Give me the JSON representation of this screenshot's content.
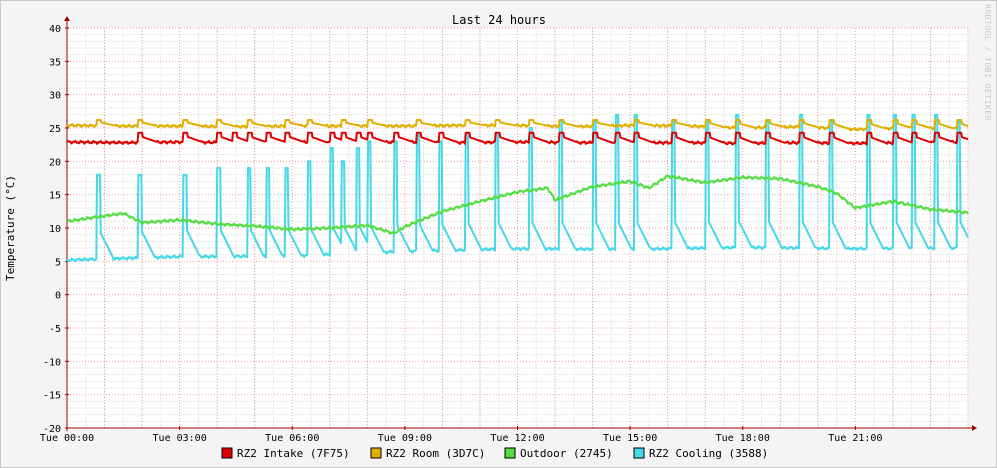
{
  "watermark": "RRDTOOL / TOBI OETIKER",
  "colors": {
    "background": "#f4f4f4",
    "plot_background": "#ffffff",
    "minor_grid": "#e0e0e0",
    "major_grid": "#f0a0a0",
    "axis": "#a00000"
  },
  "chart_data": {
    "type": "line",
    "title": "Last 24 hours",
    "xlabel": "",
    "ylabel": "Temperature (°C)",
    "ylim": [
      -20,
      40
    ],
    "yticks": [
      40,
      35,
      30,
      25,
      20,
      15,
      10,
      5,
      0,
      -5,
      -10,
      -15,
      -20
    ],
    "xlim": [
      0,
      24
    ],
    "xticks": [
      {
        "x": 0,
        "label": "Tue 00:00"
      },
      {
        "x": 3,
        "label": "Tue 03:00"
      },
      {
        "x": 6,
        "label": "Tue 06:00"
      },
      {
        "x": 9,
        "label": "Tue 09:00"
      },
      {
        "x": 12,
        "label": "Tue 12:00"
      },
      {
        "x": 15,
        "label": "Tue 15:00"
      },
      {
        "x": 18,
        "label": "Tue 18:00"
      },
      {
        "x": 21,
        "label": "Tue 21:00"
      }
    ],
    "grid": true,
    "legend_position": "bottom",
    "series": [
      {
        "name": "RZ2 Intake (7F75)",
        "color": "#e00000",
        "x": [
          0,
          1.5,
          3,
          4.5,
          6,
          7.5,
          9,
          10.5,
          12,
          13.5,
          15,
          16.5,
          18,
          19.5,
          21,
          22.5,
          24
        ],
        "y": [
          22.9,
          22.8,
          22.9,
          22.8,
          22.9,
          22.8,
          22.9,
          22.8,
          22.9,
          22.8,
          22.8,
          22.8,
          22.7,
          22.8,
          22.7,
          22.8,
          22.9
        ],
        "spikes": [
          1.9,
          3.1,
          4.0,
          4.4,
          4.8,
          5.3,
          5.8,
          6.4,
          7.0,
          7.3,
          7.7,
          8.0,
          8.7,
          9.3,
          9.9,
          10.6,
          11.4,
          12.3,
          13.1,
          14.0,
          14.6,
          15.1,
          16.1,
          17.0,
          17.8,
          18.6,
          19.5,
          20.3,
          21.3,
          22.0,
          22.5,
          23.1,
          23.7
        ],
        "spike_peak": 24.3
      },
      {
        "name": "RZ2 Room (3D7C)",
        "color": "#e0b000",
        "x": [
          0,
          1.5,
          3,
          4.5,
          6,
          7.5,
          9,
          10.5,
          12,
          13.5,
          15,
          16.5,
          18,
          19.5,
          21,
          22.5,
          24
        ],
        "y": [
          25.4,
          25.3,
          25.3,
          25.2,
          25.3,
          25.3,
          25.3,
          25.4,
          25.4,
          25.2,
          25.4,
          25.3,
          25.0,
          25.2,
          24.8,
          25.0,
          24.9
        ],
        "spikes": [
          0.8,
          1.9,
          3.1,
          4.0,
          4.8,
          5.8,
          6.4,
          7.3,
          8.0,
          9.3,
          10.6,
          11.4,
          12.3,
          13.1,
          14.0,
          15.1,
          16.1,
          17.0,
          17.8,
          18.6,
          19.5,
          20.3,
          21.3,
          22.0,
          22.5,
          23.1,
          23.7
        ],
        "spike_peak": 26.2
      },
      {
        "name": "Outdoor (2745)",
        "color": "#55dd44",
        "x": [
          0,
          1,
          1.5,
          2,
          3,
          4,
          5,
          6,
          7,
          8,
          8.7,
          9,
          10,
          11,
          12,
          12.8,
          13,
          14,
          15,
          15.5,
          16,
          17,
          18,
          19,
          20,
          20.5,
          21,
          22,
          23,
          24
        ],
        "y": [
          11.0,
          11.8,
          12.2,
          10.8,
          11.2,
          10.6,
          10.3,
          9.8,
          10.0,
          10.4,
          9.2,
          10.2,
          12.5,
          14.0,
          15.4,
          16.0,
          14.2,
          16.2,
          17.0,
          16.0,
          17.8,
          16.8,
          17.6,
          17.4,
          16.2,
          15.2,
          13.0,
          14.0,
          12.8,
          12.3
        ]
      },
      {
        "name": "RZ2 Cooling (3588)",
        "color": "#44d8e8",
        "x": [
          0,
          3,
          6,
          9,
          12,
          15,
          18,
          21,
          24
        ],
        "y": [
          5.2,
          5.7,
          5.8,
          6.5,
          6.9,
          6.8,
          7.1,
          6.9,
          7.0
        ],
        "spikes": [
          0.8,
          1.9,
          3.1,
          4.0,
          4.8,
          5.3,
          5.8,
          6.4,
          7.0,
          7.3,
          7.7,
          8.0,
          8.7,
          9.3,
          9.9,
          10.6,
          11.4,
          12.3,
          13.1,
          14.0,
          14.6,
          15.1,
          16.1,
          17.0,
          17.8,
          18.6,
          19.5,
          20.3,
          21.3,
          22.0,
          22.5,
          23.1,
          23.7
        ],
        "spike_peaks": [
          18,
          18,
          18,
          19,
          19,
          19,
          19,
          20,
          22,
          20,
          22,
          23,
          23,
          24,
          23,
          24,
          24,
          25,
          26,
          26,
          27,
          27,
          26,
          26,
          27,
          26,
          27,
          26,
          27,
          27,
          27,
          27,
          26
        ]
      }
    ]
  }
}
